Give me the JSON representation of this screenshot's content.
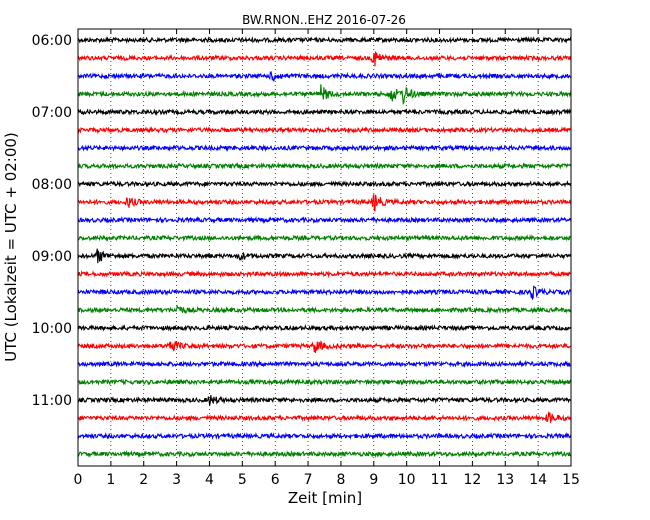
{
  "chart_data": {
    "type": "line",
    "title": "BW.RNON..EHZ 2016-07-26",
    "xlabel": "Zeit  [min]",
    "ylabel": "UTC (Lokalzeit = UTC + 02:00)",
    "xlim": [
      0,
      15
    ],
    "x_ticks": [
      0,
      1,
      2,
      3,
      4,
      5,
      6,
      7,
      8,
      9,
      10,
      11,
      12,
      13,
      14,
      15
    ],
    "x_tick_labels": [
      "0",
      "1",
      "2",
      "3",
      "4",
      "5",
      "6",
      "7",
      "8",
      "9",
      "10",
      "11",
      "12",
      "13",
      "14",
      "15"
    ],
    "row_interval_minutes": 15,
    "grid": "vertical dotted",
    "y_tick_labels": [
      "06:00",
      "07:00",
      "08:00",
      "09:00",
      "10:00",
      "11:00"
    ],
    "series": [
      {
        "start": "06:00",
        "color": "#000000",
        "events": []
      },
      {
        "start": "06:15",
        "color": "#ff0000",
        "events": [
          {
            "minute": 9.0,
            "amp": 1.0
          }
        ]
      },
      {
        "start": "06:30",
        "color": "#0000ff",
        "events": [
          {
            "minute": 5.9,
            "amp": 0.6
          }
        ]
      },
      {
        "start": "06:45",
        "color": "#008000",
        "events": [
          {
            "minute": 7.4,
            "amp": 0.9
          },
          {
            "minute": 9.5,
            "amp": 1.0
          },
          {
            "minute": 9.9,
            "amp": 0.9
          }
        ]
      },
      {
        "start": "07:00",
        "color": "#000000",
        "events": []
      },
      {
        "start": "07:15",
        "color": "#ff0000",
        "events": []
      },
      {
        "start": "07:30",
        "color": "#0000ff",
        "events": []
      },
      {
        "start": "07:45",
        "color": "#008000",
        "events": []
      },
      {
        "start": "08:00",
        "color": "#000000",
        "events": []
      },
      {
        "start": "08:15",
        "color": "#ff0000",
        "events": [
          {
            "minute": 1.5,
            "amp": 0.6
          },
          {
            "minute": 9.0,
            "amp": 1.0
          }
        ]
      },
      {
        "start": "08:30",
        "color": "#0000ff",
        "events": []
      },
      {
        "start": "08:45",
        "color": "#008000",
        "events": []
      },
      {
        "start": "09:00",
        "color": "#000000",
        "events": [
          {
            "minute": 0.6,
            "amp": 0.7
          },
          {
            "minute": 4.9,
            "amp": 0.4
          }
        ]
      },
      {
        "start": "09:15",
        "color": "#ff0000",
        "events": []
      },
      {
        "start": "09:30",
        "color": "#0000ff",
        "events": [
          {
            "minute": 13.8,
            "amp": 0.7
          }
        ]
      },
      {
        "start": "09:45",
        "color": "#008000",
        "events": [
          {
            "minute": 3.0,
            "amp": 0.5
          }
        ]
      },
      {
        "start": "10:00",
        "color": "#000000",
        "events": []
      },
      {
        "start": "10:15",
        "color": "#ff0000",
        "events": [
          {
            "minute": 2.8,
            "amp": 0.8
          },
          {
            "minute": 7.2,
            "amp": 0.8
          }
        ]
      },
      {
        "start": "10:30",
        "color": "#0000ff",
        "events": []
      },
      {
        "start": "10:45",
        "color": "#008000",
        "events": []
      },
      {
        "start": "11:00",
        "color": "#000000",
        "events": [
          {
            "minute": 4.0,
            "amp": 0.5
          }
        ]
      },
      {
        "start": "11:15",
        "color": "#ff0000",
        "events": [
          {
            "minute": 14.3,
            "amp": 0.6
          }
        ]
      },
      {
        "start": "11:30",
        "color": "#0000ff",
        "events": []
      },
      {
        "start": "11:45",
        "color": "#008000",
        "events": []
      }
    ]
  }
}
